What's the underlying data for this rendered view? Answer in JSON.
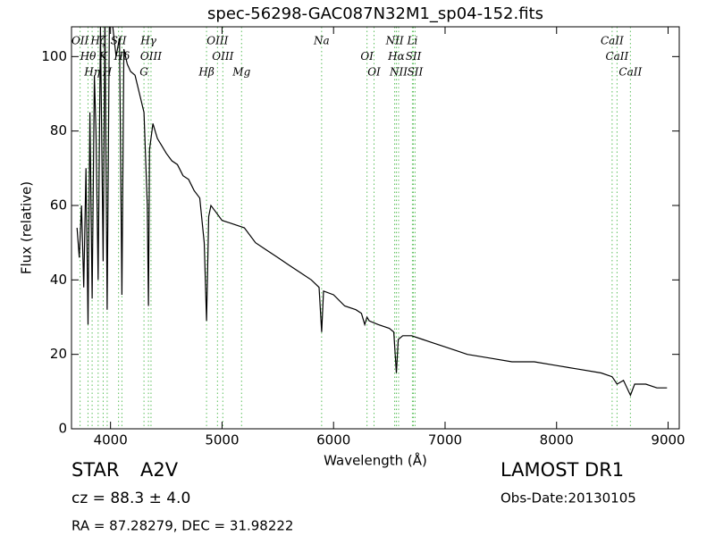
{
  "chart_data": {
    "type": "line",
    "title": "spec-56298-GAC087N32M1_sp04-152.fits",
    "x_label": "Wavelength (Å)",
    "y_label": "Flux (relative)",
    "xlim": [
      3650,
      9100
    ],
    "ylim": [
      0,
      108
    ],
    "xticks": [
      4000,
      5000,
      6000,
      7000,
      8000,
      9000
    ],
    "yticks": [
      0,
      20,
      40,
      60,
      80,
      100
    ],
    "color": "#000000",
    "line_color": "#5cbf5c",
    "x": [
      3700,
      3720,
      3740,
      3760,
      3780,
      3798,
      3815,
      3835,
      3855,
      3870,
      3889,
      3910,
      3934,
      3950,
      3970,
      3990,
      4020,
      4050,
      4080,
      4102,
      4120,
      4150,
      4180,
      4220,
      4260,
      4300,
      4330,
      4340,
      4350,
      4380,
      4420,
      4460,
      4500,
      4550,
      4600,
      4650,
      4700,
      4750,
      4800,
      4840,
      4861,
      4880,
      4900,
      4950,
      5000,
      5100,
      5200,
      5300,
      5400,
      5500,
      5600,
      5700,
      5800,
      5870,
      5893,
      5910,
      6000,
      6100,
      6200,
      6250,
      6280,
      6300,
      6320,
      6400,
      6500,
      6540,
      6563,
      6580,
      6620,
      6700,
      6800,
      6900,
      7000,
      7200,
      7400,
      7600,
      7800,
      8000,
      8200,
      8400,
      8498,
      8542,
      8600,
      8662,
      8700,
      8800,
      8900,
      8990
    ],
    "values": [
      54,
      46,
      60,
      38,
      70,
      28,
      85,
      35,
      95,
      80,
      40,
      108,
      45,
      110,
      32,
      110,
      108,
      100,
      105,
      36,
      102,
      98,
      96,
      95,
      90,
      85,
      60,
      33,
      75,
      82,
      78,
      76,
      74,
      72,
      71,
      68,
      67,
      64,
      62,
      50,
      29,
      57,
      60,
      58,
      56,
      55,
      54,
      50,
      48,
      46,
      44,
      42,
      40,
      38,
      26,
      37,
      36,
      33,
      32,
      31,
      28,
      30,
      29,
      28,
      27,
      26,
      15,
      24,
      25,
      25,
      24,
      23,
      22,
      20,
      19,
      18,
      18,
      17,
      16,
      15,
      14,
      12,
      13,
      9,
      12,
      12,
      11,
      11
    ],
    "lines": [
      {
        "wavelength": 3727,
        "label": "OII"
      },
      {
        "wavelength": 3798,
        "label": "Hθ"
      },
      {
        "wavelength": 3835,
        "label": "Hη"
      },
      {
        "wavelength": 3889,
        "label": "Hζ"
      },
      {
        "wavelength": 3934,
        "label": "K"
      },
      {
        "wavelength": 3970,
        "label": "H"
      },
      {
        "wavelength": 4072,
        "label": "SII"
      },
      {
        "wavelength": 4102,
        "label": "Hδ"
      },
      {
        "wavelength": 4300,
        "label": "G"
      },
      {
        "wavelength": 4340,
        "label": "Hγ"
      },
      {
        "wavelength": 4363,
        "label": "OIII"
      },
      {
        "wavelength": 4861,
        "label": "Hβ"
      },
      {
        "wavelength": 4959,
        "label": "OIII"
      },
      {
        "wavelength": 5007,
        "label": "OIII"
      },
      {
        "wavelength": 5175,
        "label": "Mg"
      },
      {
        "wavelength": 5893,
        "label": "Na"
      },
      {
        "wavelength": 6300,
        "label": "OI"
      },
      {
        "wavelength": 6363,
        "label": "OI"
      },
      {
        "wavelength": 6548,
        "label": "NII"
      },
      {
        "wavelength": 6563,
        "label": "Hα"
      },
      {
        "wavelength": 6583,
        "label": "NII"
      },
      {
        "wavelength": 6707,
        "label": "Li"
      },
      {
        "wavelength": 6716,
        "label": "SII"
      },
      {
        "wavelength": 6731,
        "label": "SII"
      },
      {
        "wavelength": 8498,
        "label": "CaII"
      },
      {
        "wavelength": 8542,
        "label": "CaII"
      },
      {
        "wavelength": 8662,
        "label": "CaII"
      }
    ],
    "object_class": "STAR",
    "subclass": "A2V",
    "redshift": "cz = 88.3 ± 4.0",
    "coordinates": "RA = 87.28279, DEC = 31.98222",
    "survey": "LAMOST DR1",
    "obs_date": "Obs-Date:20130105"
  }
}
